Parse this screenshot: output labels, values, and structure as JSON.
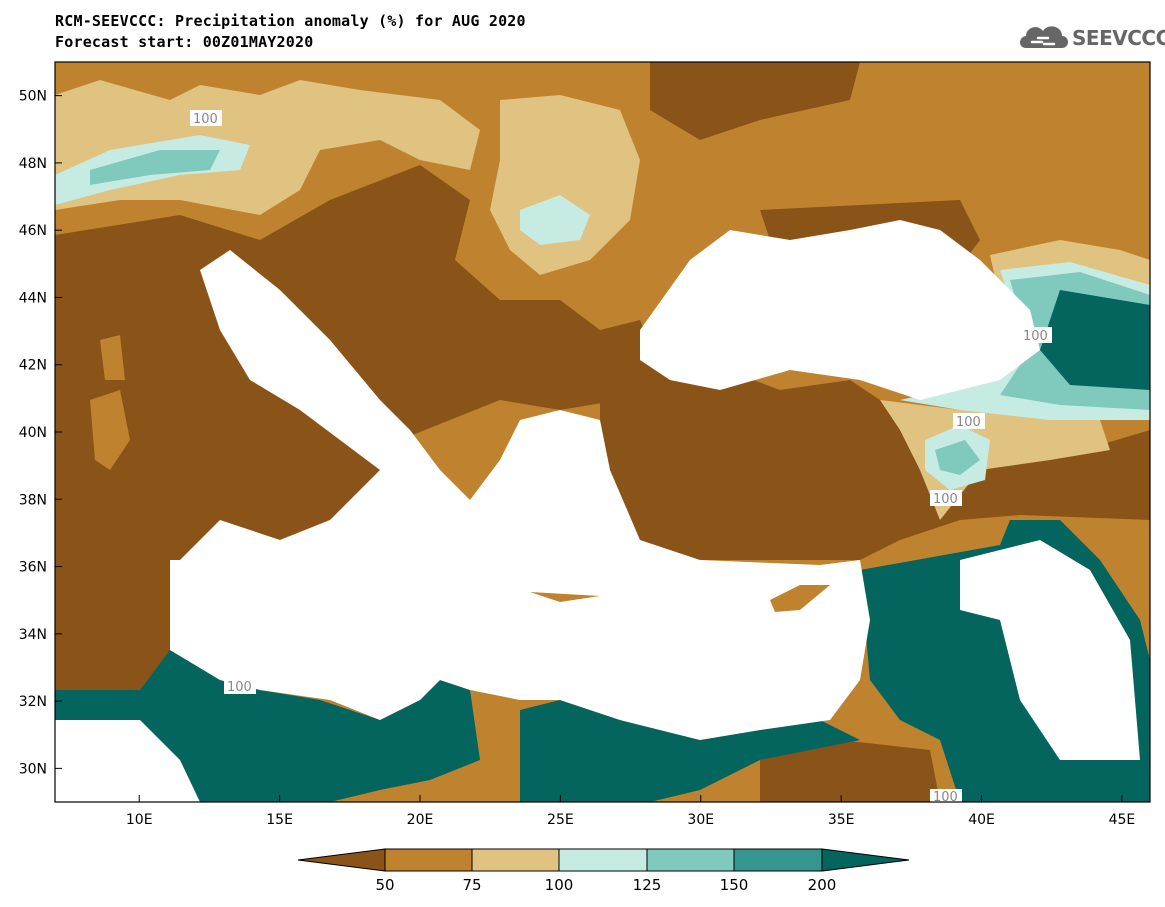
{
  "header": {
    "title_line1": "RCM-SEEVCCC: Precipitation anomaly (%) for AUG 2020",
    "title_line2": "Forecast start: 00Z01MAY2020"
  },
  "logo": {
    "text": "SEEVCCC",
    "icon": "cloud-icon"
  },
  "map": {
    "lon_range": [
      7,
      46
    ],
    "lat_range": [
      29,
      51
    ],
    "lon_ticks": [
      "10E",
      "15E",
      "20E",
      "25E",
      "30E",
      "35E",
      "40E",
      "45E"
    ],
    "lat_ticks": [
      "50N",
      "48N",
      "46N",
      "44N",
      "42N",
      "40N",
      "38N",
      "36N",
      "34N",
      "32N",
      "30N"
    ],
    "contour_labels": [
      "100",
      "100",
      "100",
      "100",
      "100",
      "100"
    ]
  },
  "colors": {
    "lt50": "#8a5418",
    "b50_75": "#bf822f",
    "b75_100": "#e0c380",
    "b100_125": "#c6ebe3",
    "b125_150": "#7fc9bd",
    "b150_200": "#34968e",
    "gt200": "#04645e"
  },
  "legend": {
    "labels": [
      "50",
      "75",
      "100",
      "125",
      "150",
      "200"
    ]
  }
}
